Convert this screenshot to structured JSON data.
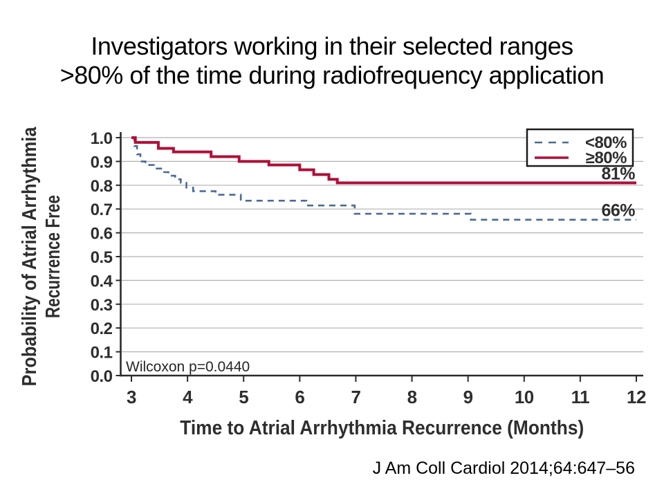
{
  "slide": {
    "title_line1": "Investigators working in their selected ranges",
    "title_line2": ">80% of the time during radiofrequency application",
    "citation": "J Am Coll Cardiol 2014;64:647–56"
  },
  "chart_data": {
    "type": "line",
    "variant": "kaplan_meier_step",
    "title": "",
    "xlabel": "Time to Atrial Arrhythmia Recurrence (Months)",
    "ylabel_line1": "Probability of Atrial Arrhythmia",
    "ylabel_line2": "Recurrence Free",
    "x": {
      "min": 3,
      "max": 12,
      "ticks": [
        3,
        4,
        5,
        6,
        7,
        8,
        9,
        10,
        11,
        12
      ]
    },
    "y": {
      "min": 0,
      "max": 1,
      "tick_labels": [
        "0.0",
        "0.1",
        "0.2",
        "0.3",
        "0.4",
        "0.5",
        "0.6",
        "0.7",
        "0.8",
        "0.9",
        "1.0"
      ]
    },
    "grid": "horizontal",
    "legend_position": "top-right",
    "annotation": "Wilcoxon p=0.0440",
    "series": [
      {
        "id": "lt80",
        "name": "<80%",
        "style": "dashed",
        "color": "#4a6a96",
        "end_label": "66%",
        "steps": [
          [
            3,
            1.0
          ],
          [
            3.05,
            0.965
          ],
          [
            3.1,
            0.93
          ],
          [
            3.16,
            0.9
          ],
          [
            3.25,
            0.885
          ],
          [
            3.4,
            0.87
          ],
          [
            3.53,
            0.855
          ],
          [
            3.66,
            0.84
          ],
          [
            3.78,
            0.825
          ],
          [
            3.88,
            0.81
          ],
          [
            3.98,
            0.79
          ],
          [
            4.1,
            0.775
          ],
          [
            4.5,
            0.76
          ],
          [
            4.95,
            0.735
          ],
          [
            6.12,
            0.715
          ],
          [
            6.98,
            0.68
          ],
          [
            9.05,
            0.655
          ],
          [
            12,
            0.655
          ]
        ]
      },
      {
        "id": "ge80",
        "name": "≥80%",
        "style": "solid",
        "color": "#b00f38",
        "end_label": "81%",
        "steps": [
          [
            3,
            1.0
          ],
          [
            3.07,
            0.98
          ],
          [
            3.48,
            0.955
          ],
          [
            3.75,
            0.94
          ],
          [
            4.42,
            0.92
          ],
          [
            4.92,
            0.9
          ],
          [
            5.45,
            0.885
          ],
          [
            6.0,
            0.865
          ],
          [
            6.25,
            0.845
          ],
          [
            6.52,
            0.825
          ],
          [
            6.67,
            0.81
          ],
          [
            12,
            0.81
          ]
        ]
      }
    ],
    "colors": {
      "grid": "#b0b0b0",
      "axis": "#2a2a2a",
      "text": "#2e2e2e"
    }
  }
}
